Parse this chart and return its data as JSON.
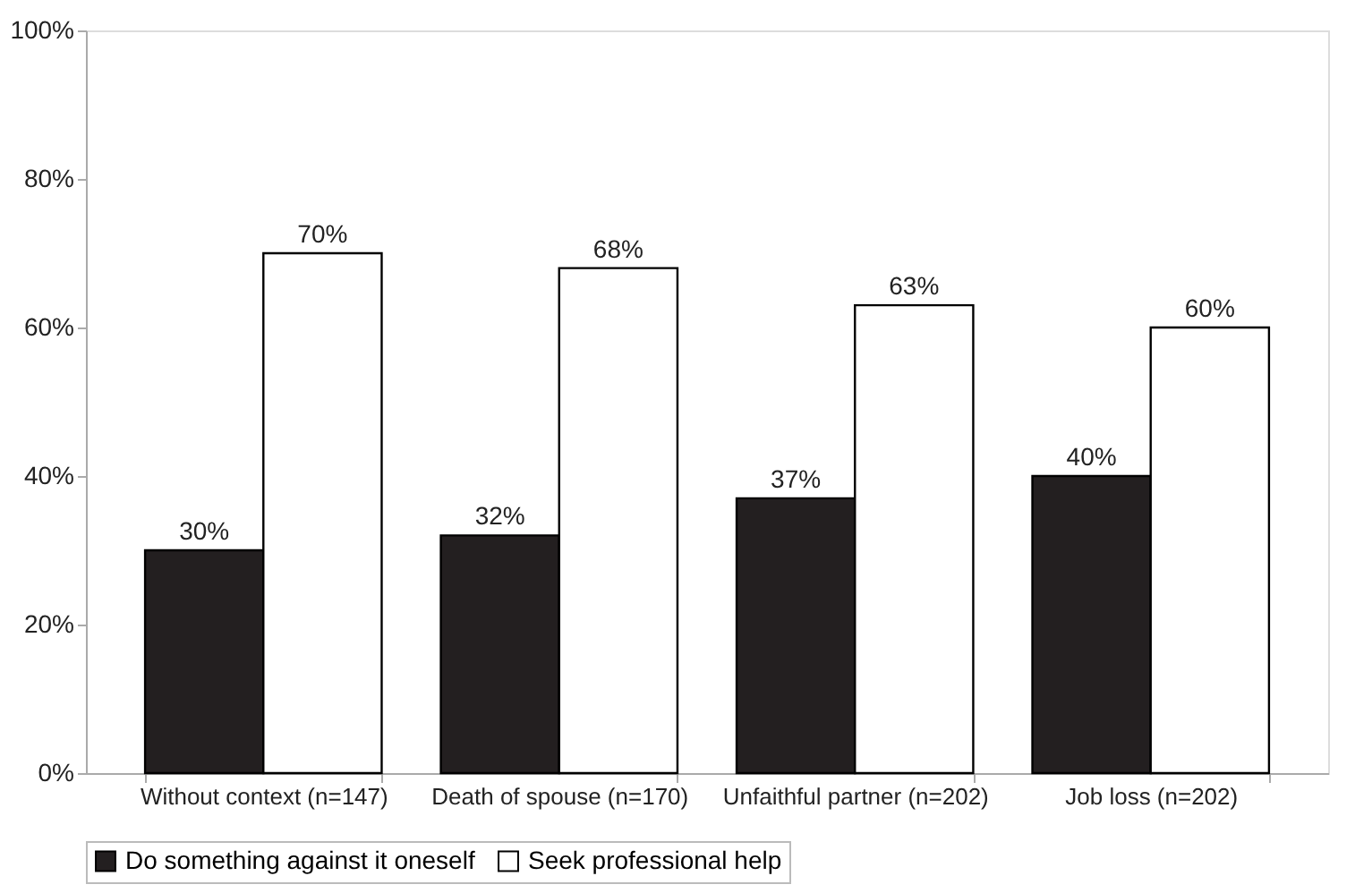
{
  "chart_data": {
    "type": "bar",
    "categories": [
      "Without context (n=147)",
      "Death of spouse (n=170)",
      "Unfaithful partner (n=202)",
      "Job loss (n=202)"
    ],
    "series": [
      {
        "name": "Do something against it oneself",
        "color": "#231f20",
        "values": [
          30,
          32,
          37,
          40
        ],
        "value_labels": [
          "30%",
          "32%",
          "37%",
          "40%"
        ]
      },
      {
        "name": "Seek professional help",
        "color": "#ffffff",
        "values": [
          70,
          68,
          63,
          60
        ],
        "value_labels": [
          "70%",
          "68%",
          "63%",
          "60%"
        ]
      }
    ],
    "ylim": [
      0,
      100
    ],
    "yticks": [
      {
        "value": 0,
        "label": "0%"
      },
      {
        "value": 20,
        "label": "20%"
      },
      {
        "value": 40,
        "label": "40%"
      },
      {
        "value": 60,
        "label": "60%"
      },
      {
        "value": 80,
        "label": "80%"
      },
      {
        "value": 100,
        "label": "100%"
      }
    ],
    "grid": false,
    "legend": "bottom"
  }
}
